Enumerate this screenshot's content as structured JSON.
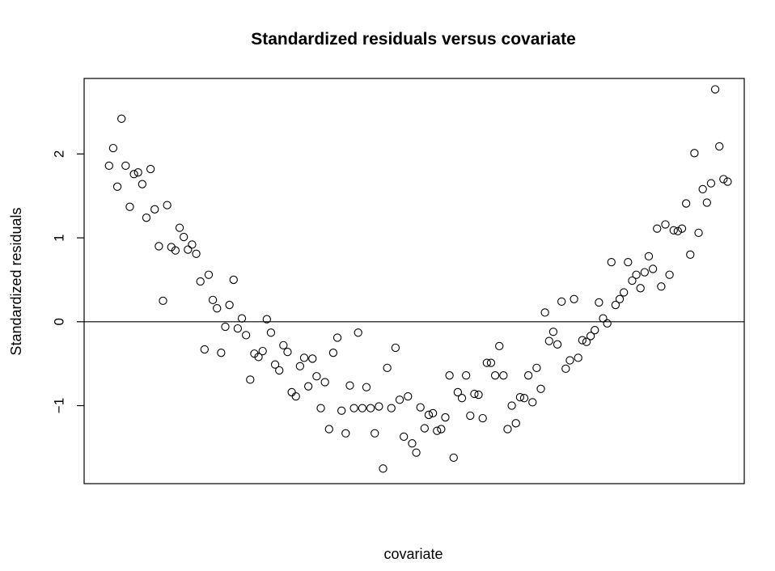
{
  "chart_data": {
    "type": "scatter",
    "title": "Standardized residuals versus covariate",
    "xlabel": "covariate",
    "ylabel": "Standardized residuals",
    "xlim": [
      0,
      159
    ],
    "ylim": [
      -1.93,
      2.9
    ],
    "y_ticks": [
      -1,
      0,
      1,
      2
    ],
    "y_tick_labels": [
      "−1",
      "0",
      "1",
      "2"
    ],
    "x_ticks_shown": false,
    "reference_line": {
      "orientation": "horizontal",
      "y": 0
    },
    "marker": "open-circle",
    "grid": false,
    "points": [
      [
        6,
        1.86
      ],
      [
        7,
        2.07
      ],
      [
        8,
        1.61
      ],
      [
        9,
        2.42
      ],
      [
        10,
        1.86
      ],
      [
        11,
        1.37
      ],
      [
        12,
        1.76
      ],
      [
        13,
        1.78
      ],
      [
        14,
        1.64
      ],
      [
        15,
        1.24
      ],
      [
        16,
        1.82
      ],
      [
        17,
        1.34
      ],
      [
        18,
        0.9
      ],
      [
        19,
        0.25
      ],
      [
        20,
        1.39
      ],
      [
        21,
        0.89
      ],
      [
        22,
        0.85
      ],
      [
        23,
        1.12
      ],
      [
        24,
        1.01
      ],
      [
        25,
        0.86
      ],
      [
        26,
        0.92
      ],
      [
        27,
        0.81
      ],
      [
        28,
        0.48
      ],
      [
        29,
        -0.33
      ],
      [
        30,
        0.56
      ],
      [
        31,
        0.26
      ],
      [
        32,
        0.16
      ],
      [
        33,
        -0.37
      ],
      [
        34,
        -0.06
      ],
      [
        35,
        0.2
      ],
      [
        36,
        0.5
      ],
      [
        37,
        -0.08
      ],
      [
        38,
        0.04
      ],
      [
        39,
        -0.16
      ],
      [
        40,
        -0.69
      ],
      [
        41,
        -0.38
      ],
      [
        42,
        -0.42
      ],
      [
        43,
        -0.35
      ],
      [
        44,
        0.03
      ],
      [
        45,
        -0.13
      ],
      [
        46,
        -0.51
      ],
      [
        47,
        -0.58
      ],
      [
        48,
        -0.28
      ],
      [
        49,
        -0.36
      ],
      [
        50,
        -0.84
      ],
      [
        51,
        -0.89
      ],
      [
        52,
        -0.53
      ],
      [
        53,
        -0.43
      ],
      [
        54,
        -0.77
      ],
      [
        55,
        -0.44
      ],
      [
        56,
        -0.65
      ],
      [
        57,
        -1.03
      ],
      [
        58,
        -0.72
      ],
      [
        59,
        -1.28
      ],
      [
        60,
        -0.37
      ],
      [
        61,
        -0.19
      ],
      [
        62,
        -1.06
      ],
      [
        63,
        -1.33
      ],
      [
        64,
        -0.76
      ],
      [
        65,
        -1.03
      ],
      [
        66,
        -0.13
      ],
      [
        67,
        -1.03
      ],
      [
        68,
        -0.78
      ],
      [
        69,
        -1.03
      ],
      [
        70,
        -1.33
      ],
      [
        71,
        -1.01
      ],
      [
        72,
        -1.75
      ],
      [
        73,
        -0.55
      ],
      [
        74,
        -1.03
      ],
      [
        75,
        -0.31
      ],
      [
        76,
        -0.93
      ],
      [
        77,
        -1.37
      ],
      [
        78,
        -0.89
      ],
      [
        79,
        -1.45
      ],
      [
        80,
        -1.56
      ],
      [
        81,
        -1.02
      ],
      [
        82,
        -1.27
      ],
      [
        83,
        -1.11
      ],
      [
        84,
        -1.09
      ],
      [
        85,
        -1.3
      ],
      [
        86,
        -1.28
      ],
      [
        87,
        -1.14
      ],
      [
        88,
        -0.64
      ],
      [
        89,
        -1.62
      ],
      [
        90,
        -0.84
      ],
      [
        91,
        -0.91
      ],
      [
        92,
        -0.64
      ],
      [
        93,
        -1.12
      ],
      [
        94,
        -0.86
      ],
      [
        95,
        -0.87
      ],
      [
        96,
        -1.15
      ],
      [
        97,
        -0.49
      ],
      [
        98,
        -0.49
      ],
      [
        99,
        -0.64
      ],
      [
        100,
        -0.29
      ],
      [
        101,
        -0.64
      ],
      [
        102,
        -1.28
      ],
      [
        103,
        -1.0
      ],
      [
        104,
        -1.21
      ],
      [
        105,
        -0.9
      ],
      [
        106,
        -0.91
      ],
      [
        107,
        -0.64
      ],
      [
        108,
        -0.96
      ],
      [
        109,
        -0.55
      ],
      [
        110,
        -0.8
      ],
      [
        111,
        0.11
      ],
      [
        112,
        -0.23
      ],
      [
        113,
        -0.12
      ],
      [
        114,
        -0.27
      ],
      [
        115,
        0.24
      ],
      [
        116,
        -0.56
      ],
      [
        117,
        -0.46
      ],
      [
        118,
        0.27
      ],
      [
        119,
        -0.43
      ],
      [
        120,
        -0.22
      ],
      [
        121,
        -0.24
      ],
      [
        122,
        -0.17
      ],
      [
        123,
        -0.1
      ],
      [
        124,
        0.23
      ],
      [
        125,
        0.04
      ],
      [
        126,
        -0.02
      ],
      [
        127,
        0.71
      ],
      [
        128,
        0.2
      ],
      [
        129,
        0.27
      ],
      [
        130,
        0.35
      ],
      [
        131,
        0.71
      ],
      [
        132,
        0.49
      ],
      [
        133,
        0.56
      ],
      [
        134,
        0.4
      ],
      [
        135,
        0.59
      ],
      [
        136,
        0.78
      ],
      [
        137,
        0.63
      ],
      [
        138,
        1.11
      ],
      [
        139,
        0.42
      ],
      [
        140,
        1.16
      ],
      [
        141,
        0.56
      ],
      [
        142,
        1.09
      ],
      [
        143,
        1.08
      ],
      [
        144,
        1.11
      ],
      [
        145,
        1.41
      ],
      [
        146,
        0.8
      ],
      [
        147,
        2.01
      ],
      [
        148,
        1.06
      ],
      [
        149,
        1.58
      ],
      [
        150,
        1.42
      ],
      [
        151,
        1.65
      ],
      [
        152,
        2.77
      ],
      [
        153,
        2.09
      ],
      [
        154,
        1.7
      ],
      [
        155,
        1.67
      ]
    ]
  }
}
